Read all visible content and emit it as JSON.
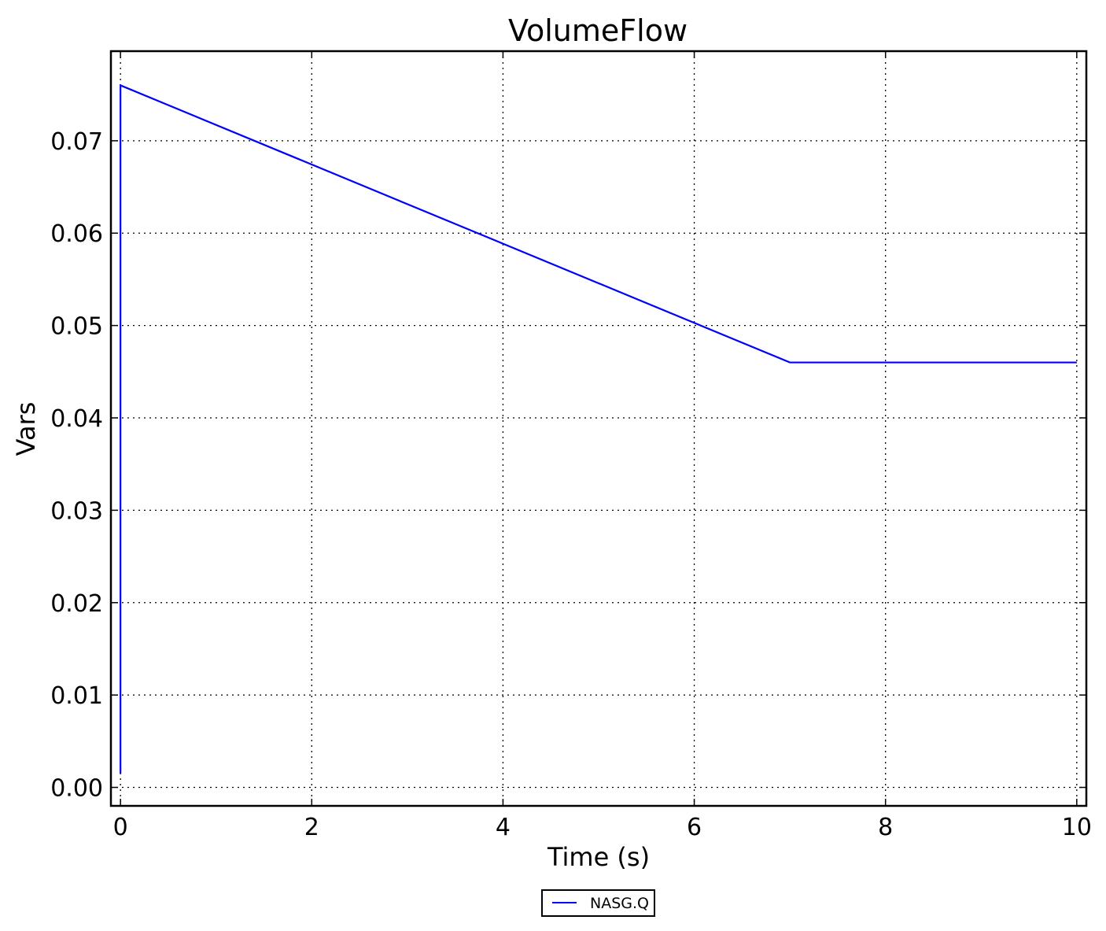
{
  "chart_data": {
    "type": "line",
    "title": "VolumeFlow",
    "xlabel": "Time (s)",
    "ylabel": "Vars",
    "xlim": [
      -0.1,
      10.1
    ],
    "ylim": [
      -0.002,
      0.0797
    ],
    "x_ticks": [
      0,
      2,
      4,
      6,
      8,
      10
    ],
    "x_tick_labels": [
      "0",
      "2",
      "4",
      "6",
      "8",
      "10"
    ],
    "y_ticks": [
      0.0,
      0.01,
      0.02,
      0.03,
      0.04,
      0.05,
      0.06,
      0.07
    ],
    "y_tick_labels": [
      "0.00",
      "0.01",
      "0.02",
      "0.03",
      "0.04",
      "0.05",
      "0.06",
      "0.07"
    ],
    "grid": true,
    "legend_position": "bottom-center, outside the axes",
    "series": [
      {
        "name": "NASG.Q",
        "color": "#0000ff",
        "x": [
          0.0,
          0.0,
          7.0,
          10.0
        ],
        "y": [
          0.0015,
          0.076,
          0.046,
          0.046
        ]
      }
    ]
  }
}
